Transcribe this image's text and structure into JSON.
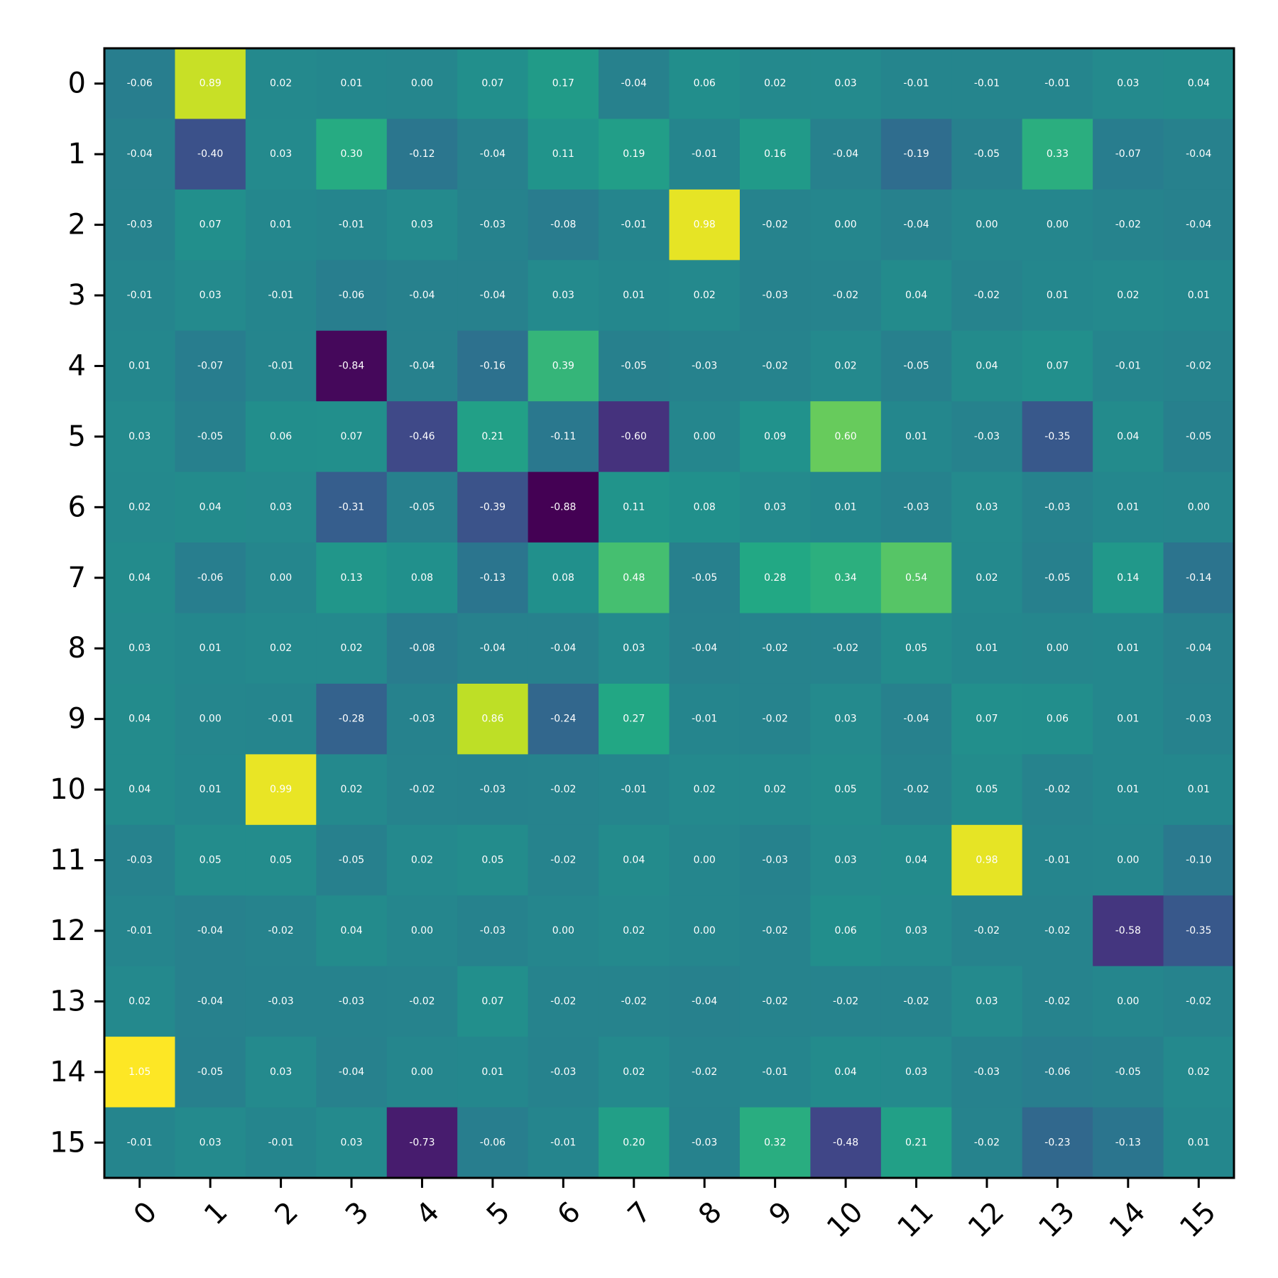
{
  "chart_data": {
    "type": "heatmap",
    "title": "",
    "xlabel": "",
    "ylabel": "",
    "colormap": "viridis",
    "value_range": [
      -0.88,
      1.05
    ],
    "value_format": "2 decimals",
    "grid": false,
    "x_ticks": [
      "0",
      "1",
      "2",
      "3",
      "4",
      "5",
      "6",
      "7",
      "8",
      "9",
      "10",
      "11",
      "12",
      "13",
      "14",
      "15"
    ],
    "y_ticks": [
      "0",
      "1",
      "2",
      "3",
      "4",
      "5",
      "6",
      "7",
      "8",
      "9",
      "10",
      "11",
      "12",
      "13",
      "14",
      "15"
    ],
    "values": [
      [
        -0.06,
        0.89,
        0.02,
        0.01,
        0.0,
        0.07,
        0.17,
        -0.04,
        0.06,
        0.02,
        0.03,
        -0.01,
        -0.01,
        -0.01,
        0.03,
        0.04
      ],
      [
        -0.04,
        -0.4,
        0.03,
        0.3,
        -0.12,
        -0.04,
        0.11,
        0.19,
        -0.01,
        0.16,
        -0.04,
        -0.19,
        -0.05,
        0.33,
        -0.07,
        -0.04
      ],
      [
        -0.03,
        0.07,
        0.01,
        -0.01,
        0.03,
        -0.03,
        -0.08,
        -0.01,
        0.98,
        -0.02,
        -0.0,
        -0.04,
        -0.0,
        0.0,
        -0.02,
        -0.04
      ],
      [
        -0.01,
        0.03,
        -0.01,
        -0.06,
        -0.04,
        -0.04,
        0.03,
        0.01,
        0.02,
        -0.03,
        -0.02,
        0.04,
        -0.02,
        0.01,
        0.02,
        0.01
      ],
      [
        0.01,
        -0.07,
        -0.01,
        -0.84,
        -0.04,
        -0.16,
        0.39,
        -0.05,
        -0.03,
        -0.02,
        0.02,
        -0.05,
        0.04,
        0.07,
        -0.01,
        -0.02
      ],
      [
        0.03,
        -0.05,
        0.06,
        0.07,
        -0.46,
        0.21,
        -0.11,
        -0.6,
        -0.0,
        0.09,
        0.6,
        0.01,
        -0.03,
        -0.35,
        0.04,
        -0.05
      ],
      [
        0.02,
        0.04,
        0.03,
        -0.31,
        -0.05,
        -0.39,
        -0.88,
        0.11,
        0.08,
        0.03,
        0.01,
        -0.03,
        0.03,
        -0.03,
        0.01,
        0.0
      ],
      [
        0.04,
        -0.06,
        -0.0,
        0.13,
        0.08,
        -0.13,
        0.08,
        0.48,
        -0.05,
        0.28,
        0.34,
        0.54,
        0.02,
        -0.05,
        0.14,
        -0.14
      ],
      [
        0.03,
        0.01,
        0.02,
        0.02,
        -0.08,
        -0.04,
        -0.04,
        0.03,
        -0.04,
        -0.02,
        -0.02,
        0.05,
        0.01,
        -0.0,
        0.01,
        -0.04
      ],
      [
        0.04,
        0.0,
        -0.01,
        -0.28,
        -0.03,
        0.86,
        -0.24,
        0.27,
        -0.01,
        -0.02,
        0.03,
        -0.04,
        0.07,
        0.06,
        0.01,
        -0.03
      ],
      [
        0.04,
        0.01,
        0.99,
        0.02,
        -0.02,
        -0.03,
        -0.02,
        -0.01,
        0.02,
        0.02,
        0.05,
        -0.02,
        0.05,
        -0.02,
        0.01,
        0.01
      ],
      [
        -0.03,
        0.05,
        0.05,
        -0.05,
        0.02,
        0.05,
        -0.02,
        0.04,
        -0.0,
        -0.03,
        0.03,
        0.04,
        0.98,
        -0.01,
        -0.0,
        -0.1
      ],
      [
        -0.01,
        -0.04,
        -0.02,
        0.04,
        -0.0,
        -0.03,
        -0.0,
        0.02,
        -0.0,
        -0.02,
        0.06,
        0.03,
        -0.02,
        -0.02,
        -0.58,
        -0.35
      ],
      [
        0.02,
        -0.04,
        -0.03,
        -0.03,
        -0.02,
        0.07,
        -0.02,
        -0.02,
        -0.04,
        -0.02,
        -0.02,
        -0.02,
        0.03,
        -0.02,
        0.0,
        -0.02
      ],
      [
        1.05,
        -0.05,
        0.03,
        -0.04,
        -0.0,
        0.01,
        -0.03,
        0.02,
        -0.02,
        -0.01,
        0.04,
        0.03,
        -0.03,
        -0.06,
        -0.05,
        0.02
      ],
      [
        -0.01,
        0.03,
        -0.01,
        0.03,
        -0.73,
        -0.06,
        -0.01,
        0.2,
        -0.03,
        0.32,
        -0.48,
        0.21,
        -0.02,
        -0.23,
        -0.13,
        0.01
      ]
    ]
  }
}
